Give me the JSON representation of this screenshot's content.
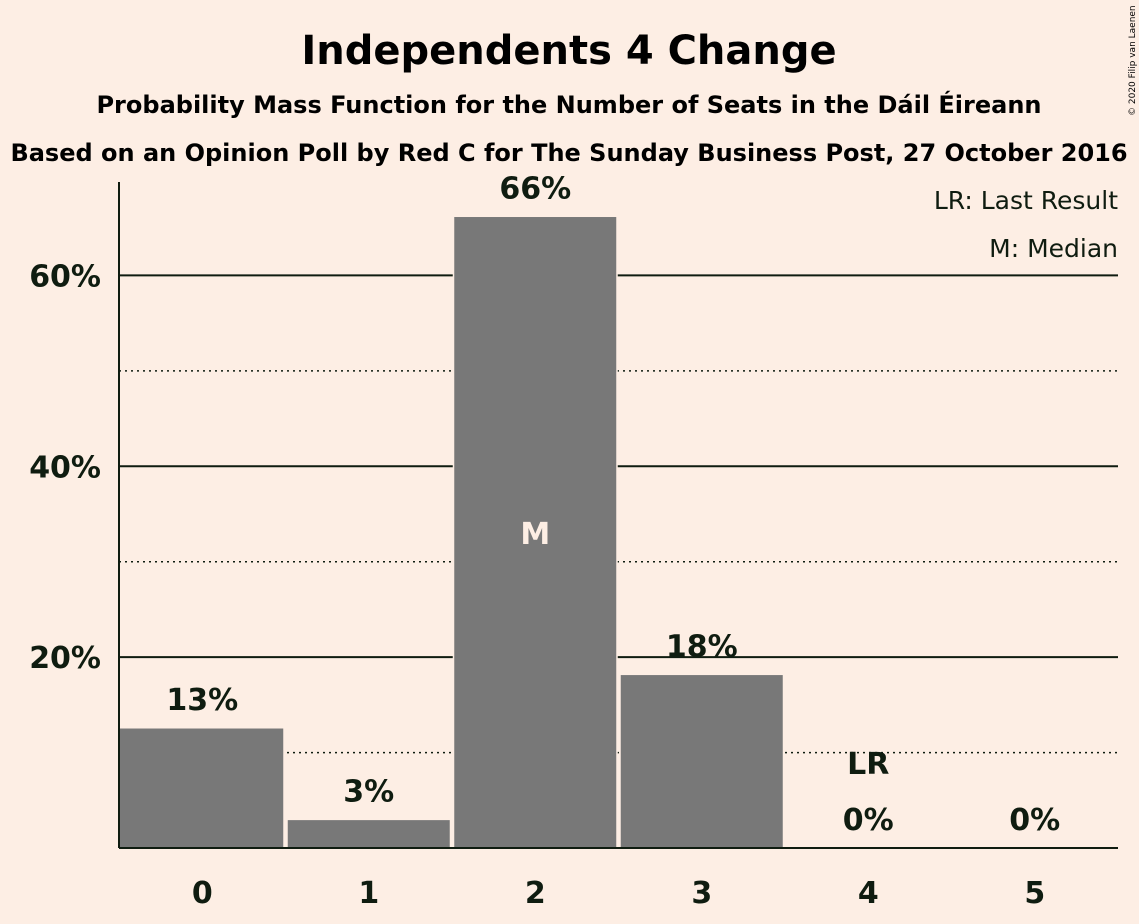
{
  "copyright": "© 2020 Filip van Laenen",
  "chart_data": {
    "type": "bar",
    "title": "Independents 4 Change",
    "subtitle": "Probability Mass Function for the Number of Seats in the Dáil Éireann",
    "subtitle2": "Based on an Opinion Poll by Red C for The Sunday Business Post, 27 October 2016",
    "categories": [
      "0",
      "1",
      "2",
      "3",
      "4",
      "5"
    ],
    "values": [
      12.6,
      3.0,
      66.2,
      18.2,
      0,
      0
    ],
    "value_labels": [
      "13%",
      "3%",
      "66%",
      "18%",
      "0%",
      "0%"
    ],
    "ylim": [
      0,
      70
    ],
    "y_major_ticks": [
      20,
      40,
      60
    ],
    "y_tick_labels": [
      "20%",
      "40%",
      "60%"
    ],
    "y_minor_ticks": [
      10,
      30,
      50
    ],
    "median_index": 2,
    "median_marker": "M",
    "last_result_index": 4,
    "last_result_marker": "LR",
    "legend": [
      "LR: Last Result",
      "M: Median"
    ],
    "colors": {
      "bar": "#787878",
      "background": "#FDEEE4",
      "text": "#0F1C10",
      "median_text": "#FDEEE4"
    }
  }
}
